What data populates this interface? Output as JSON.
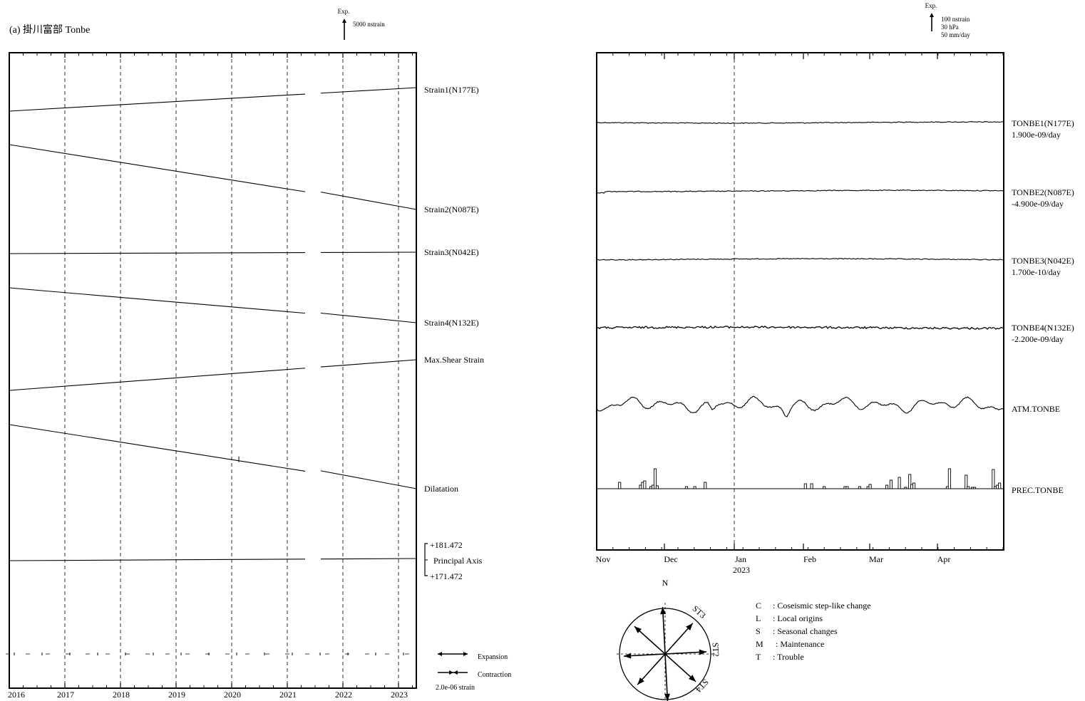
{
  "header": {
    "title": "(a) 掛川富部 Tonbe",
    "left_scale_exp": "Exp.",
    "left_scale_label": "5000 nstrain",
    "right_scale_exp": "Exp.",
    "right_scale_lines": [
      "100 nstrain",
      "30 hPa",
      "50 mm/day"
    ]
  },
  "chart_data": [
    {
      "id": "longterm",
      "type": "line",
      "x_ticks": [
        "2016",
        "2017",
        "2018",
        "2019",
        "2020",
        "2021",
        "2022",
        "2023"
      ],
      "xlim": [
        2016.0,
        2023.3
      ],
      "gap": [
        2021.3,
        2021.58
      ],
      "series": [
        {
          "name": "Strain1(N177E)",
          "label_lines": [
            "Strain1(N177E)"
          ],
          "y_start": 156,
          "y_end": 123,
          "gap_shift": 0
        },
        {
          "name": "Strain2(N087E)",
          "label_lines": [
            "Strain2(N087E)"
          ],
          "y_start": 203,
          "y_end": 294,
          "gap_shift": 3
        },
        {
          "name": "Strain3(N042E)",
          "label_lines": [
            "Strain3(N042E)"
          ],
          "y_start": 356,
          "y_end": 354,
          "gap_shift": 0
        },
        {
          "name": "Strain4(N132E)",
          "label_lines": [
            "Strain4(N132E)"
          ],
          "y_start": 404,
          "y_end": 453,
          "gap_shift": 2
        },
        {
          "name": "Max.Shear Strain",
          "label_lines": [
            "Max.Shear Strain"
          ],
          "y_start": 548,
          "y_end": 505,
          "gap_shift": 0
        },
        {
          "name": "Dilatation",
          "label_lines": [
            "Dilatation"
          ],
          "y_start": 596,
          "y_end": 686,
          "gap_shift": 4
        },
        {
          "name": "Principal Axis",
          "label_lines": [
            "Principal Axis"
          ],
          "y_start": 787,
          "y_end": 784,
          "gap_shift": 0
        }
      ],
      "principal_axis_range": [
        "+181.472",
        "+171.472"
      ],
      "axis_marker_row": "dashed",
      "legend": {
        "expansion": "Expansion",
        "contraction": "Contraction",
        "strain_scale": "2.0e-06 strain"
      }
    },
    {
      "id": "shortterm",
      "type": "line",
      "x_ticks": [
        "Nov",
        "Dec",
        "Jan",
        "Feb",
        "Mar",
        "Apr"
      ],
      "x_tick_sub": {
        "Jan": "2023"
      },
      "series": [
        {
          "name": "TONBE1(N177E)",
          "label_lines": [
            "TONBE1(N177E)",
            "1.900e-09/day"
          ],
          "kind": "strain"
        },
        {
          "name": "TONBE2(N087E)",
          "label_lines": [
            "TONBE2(N087E)",
            "-4.900e-09/day"
          ],
          "kind": "strain"
        },
        {
          "name": "TONBE3(N042E)",
          "label_lines": [
            "TONBE3(N042E)",
            "1.700e-10/day"
          ],
          "kind": "strain"
        },
        {
          "name": "TONBE4(N132E)",
          "label_lines": [
            "TONBE4(N132E)",
            "-2.200e-09/day"
          ],
          "kind": "strain"
        },
        {
          "name": "ATM.TONBE",
          "label_lines": [
            "ATM.TONBE"
          ],
          "kind": "pressure"
        },
        {
          "name": "PREC.TONBE",
          "label_lines": [
            "PREC.TONBE"
          ],
          "kind": "precip"
        }
      ],
      "precip_bars": [
        {
          "day": 11,
          "mm": 9
        },
        {
          "day": 21,
          "mm": 5
        },
        {
          "day": 22,
          "mm": 9
        },
        {
          "day": 23,
          "mm": 11
        },
        {
          "day": 26,
          "mm": 3
        },
        {
          "day": 27,
          "mm": 5
        },
        {
          "day": 28,
          "mm": 28
        },
        {
          "day": 29,
          "mm": 4
        },
        {
          "day": 43,
          "mm": 3
        },
        {
          "day": 47,
          "mm": 3
        },
        {
          "day": 52,
          "mm": 9
        },
        {
          "day": 100,
          "mm": 7
        },
        {
          "day": 103,
          "mm": 7
        },
        {
          "day": 109,
          "mm": 3
        },
        {
          "day": 119,
          "mm": 3
        },
        {
          "day": 120,
          "mm": 3
        },
        {
          "day": 126,
          "mm": 3
        },
        {
          "day": 130,
          "mm": 3
        },
        {
          "day": 131,
          "mm": 6
        },
        {
          "day": 139,
          "mm": 5
        },
        {
          "day": 141,
          "mm": 12
        },
        {
          "day": 145,
          "mm": 16
        },
        {
          "day": 148,
          "mm": 2
        },
        {
          "day": 150,
          "mm": 20
        },
        {
          "day": 151,
          "mm": 6
        },
        {
          "day": 152,
          "mm": 8
        },
        {
          "day": 168,
          "mm": 3
        },
        {
          "day": 169,
          "mm": 28
        },
        {
          "day": 177,
          "mm": 19
        },
        {
          "day": 178,
          "mm": 3
        },
        {
          "day": 180,
          "mm": 2
        },
        {
          "day": 181,
          "mm": 2
        },
        {
          "day": 190,
          "mm": 27
        },
        {
          "day": 191,
          "mm": 3
        },
        {
          "day": 192,
          "mm": 5
        },
        {
          "day": 193,
          "mm": 8
        }
      ]
    }
  ],
  "compass": {
    "north_label": "N",
    "arrows": [
      {
        "label": "ST1",
        "angle": 177
      },
      {
        "label": "ST2",
        "angle": 87
      },
      {
        "label": "ST3",
        "angle": 42
      },
      {
        "label": "ST4",
        "angle": 132
      }
    ]
  },
  "codes": [
    {
      "code": "C",
      "desc": ": Coseismic step-like change"
    },
    {
      "code": "L",
      "desc": ": Local origins"
    },
    {
      "code": "S",
      "desc": ": Seasonal changes"
    },
    {
      "code": "M",
      "desc": ": Maintenance"
    },
    {
      "code": "T",
      "desc": ": Trouble"
    }
  ]
}
